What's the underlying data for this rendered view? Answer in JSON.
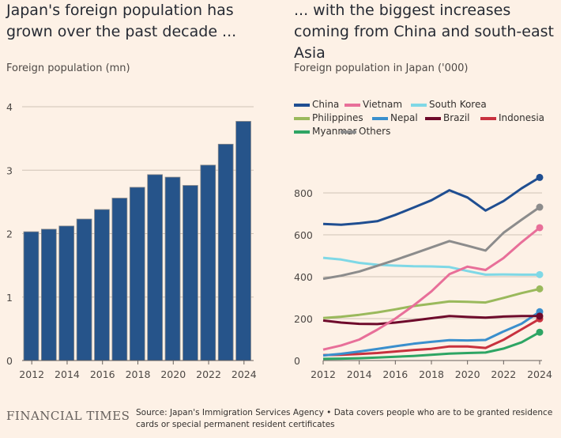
{
  "chart_data": [
    {
      "type": "bar",
      "title": "Japan's foreign population has grown over the past decade ...",
      "ylabel": "Foreign population (mn)",
      "categories": [
        2012,
        2013,
        2014,
        2015,
        2016,
        2017,
        2018,
        2019,
        2020,
        2021,
        2022,
        2023,
        2024
      ],
      "values": [
        2.03,
        2.07,
        2.12,
        2.23,
        2.38,
        2.56,
        2.73,
        2.93,
        2.89,
        2.76,
        3.08,
        3.41,
        3.77
      ],
      "ylim": [
        0,
        4
      ],
      "yticks": [
        0,
        1,
        2,
        3,
        4
      ],
      "xticks": [
        2012,
        2014,
        2016,
        2018,
        2020,
        2022,
        2024
      ],
      "grid": true,
      "color": "#26548a"
    },
    {
      "type": "line",
      "title": "... with the biggest increases coming from China and south-east Asia",
      "ylabel": "Foreign population in Japan ('000)",
      "x": [
        2012,
        2013,
        2014,
        2015,
        2016,
        2017,
        2018,
        2019,
        2020,
        2021,
        2022,
        2023,
        2024
      ],
      "ylim": [
        0,
        900
      ],
      "yticks": [
        0,
        200,
        400,
        600,
        800
      ],
      "xticks": [
        2012,
        2014,
        2016,
        2018,
        2020,
        2022,
        2024
      ],
      "grid": true,
      "legend": "top",
      "series": [
        {
          "name": "China",
          "color": "#1f4e91",
          "values": [
            652,
            648,
            655,
            665,
            695,
            730,
            765,
            813,
            778,
            716,
            761,
            822,
            874
          ]
        },
        {
          "name": "Vietnam",
          "color": "#e86f99",
          "values": [
            52,
            72,
            100,
            147,
            200,
            262,
            330,
            412,
            448,
            432,
            489,
            565,
            634
          ]
        },
        {
          "name": "South Korea",
          "color": "#7fd8e6",
          "values": [
            490,
            482,
            466,
            457,
            453,
            450,
            449,
            446,
            427,
            410,
            411,
            410,
            410
          ]
        },
        {
          "name": "Philippines",
          "color": "#9ab95c",
          "values": [
            203,
            209,
            218,
            230,
            244,
            260,
            271,
            282,
            280,
            277,
            299,
            322,
            342
          ]
        },
        {
          "name": "Nepal",
          "color": "#3a8fcd",
          "values": [
            24,
            32,
            43,
            55,
            68,
            80,
            89,
            97,
            96,
            98,
            139,
            176,
            233
          ]
        },
        {
          "name": "Brazil",
          "color": "#6e0a2b",
          "values": [
            191,
            181,
            175,
            174,
            181,
            191,
            202,
            212,
            208,
            205,
            210,
            212,
            212
          ]
        },
        {
          "name": "Indonesia",
          "color": "#c8313e",
          "values": [
            26,
            27,
            31,
            36,
            43,
            50,
            56,
            67,
            67,
            60,
            99,
            149,
            199
          ]
        },
        {
          "name": "Myanmar",
          "color": "#2ea564",
          "values": [
            8,
            9,
            11,
            14,
            18,
            22,
            27,
            33,
            36,
            38,
            57,
            87,
            135
          ]
        },
        {
          "name": "Others",
          "color": "#8c8c8c",
          "values": [
            390,
            405,
            425,
            452,
            480,
            510,
            540,
            570,
            548,
            525,
            610,
            672,
            732
          ]
        }
      ]
    }
  ],
  "footer": {
    "brand": "FINANCIAL TIMES",
    "source": "Source: Japan's Immigration Services Agency • Data covers people who are to be granted residence cards or special permanent resident certificates"
  }
}
